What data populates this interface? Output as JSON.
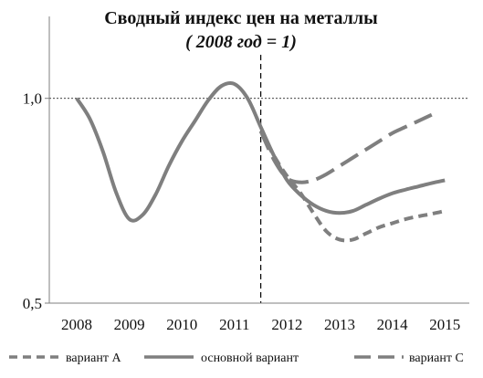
{
  "chart_data": {
    "type": "line",
    "title": "Сводный индекс цен на металлы",
    "subtitle": "( 2008 год = 1)",
    "xlabel": "",
    "ylabel": "",
    "x": [
      2008,
      2009,
      2010,
      2011,
      2012,
      2013,
      2014,
      2015
    ],
    "x_tick_labels": [
      "2008",
      "2009",
      "2010",
      "2011",
      "2012",
      "2013",
      "2014",
      "2015"
    ],
    "y_tick_labels": [
      "0,5",
      "1,0"
    ],
    "ylim": [
      0.5,
      1.2
    ],
    "reference_line_y": 1.0,
    "forecast_divider_x": 2011.5,
    "grid": false,
    "legend_position": "bottom",
    "series": [
      {
        "name": "вариант А",
        "style": "short-dash",
        "color": "#7f7f7f",
        "x": [
          2011.5,
          2011.75,
          2012,
          2012.25,
          2012.5,
          2012.75,
          2013,
          2013.25,
          2013.5,
          2013.75,
          2014,
          2014.25,
          2014.5,
          2014.75,
          2015
        ],
        "values": [
          0.92,
          0.86,
          0.81,
          0.77,
          0.72,
          0.675,
          0.655,
          0.655,
          0.67,
          0.685,
          0.695,
          0.705,
          0.712,
          0.718,
          0.725
        ]
      },
      {
        "name": "основной вариант",
        "style": "solid",
        "color": "#7f7f7f",
        "x": [
          2008,
          2008.25,
          2008.5,
          2008.75,
          2009,
          2009.25,
          2009.5,
          2009.75,
          2010,
          2010.25,
          2010.5,
          2010.75,
          2011,
          2011.25,
          2011.5,
          2011.75,
          2012,
          2012.25,
          2012.5,
          2012.75,
          2013,
          2013.25,
          2013.5,
          2013.75,
          2014,
          2014.25,
          2014.5,
          2014.75,
          2015
        ],
        "values": [
          1.0,
          0.95,
          0.87,
          0.77,
          0.705,
          0.715,
          0.765,
          0.835,
          0.895,
          0.945,
          0.995,
          1.03,
          1.035,
          1.0,
          0.93,
          0.86,
          0.8,
          0.765,
          0.74,
          0.725,
          0.72,
          0.725,
          0.74,
          0.755,
          0.768,
          0.777,
          0.785,
          0.793,
          0.8
        ]
      },
      {
        "name": "вариант С",
        "style": "long-dash",
        "color": "#7f7f7f",
        "x": [
          2011.5,
          2011.75,
          2012,
          2012.25,
          2012.5,
          2012.75,
          2013,
          2013.25,
          2013.5,
          2013.75,
          2014,
          2014.25,
          2014.5,
          2014.75
        ],
        "values": [
          0.92,
          0.85,
          0.805,
          0.795,
          0.8,
          0.815,
          0.835,
          0.855,
          0.875,
          0.895,
          0.915,
          0.93,
          0.945,
          0.96
        ]
      }
    ]
  }
}
